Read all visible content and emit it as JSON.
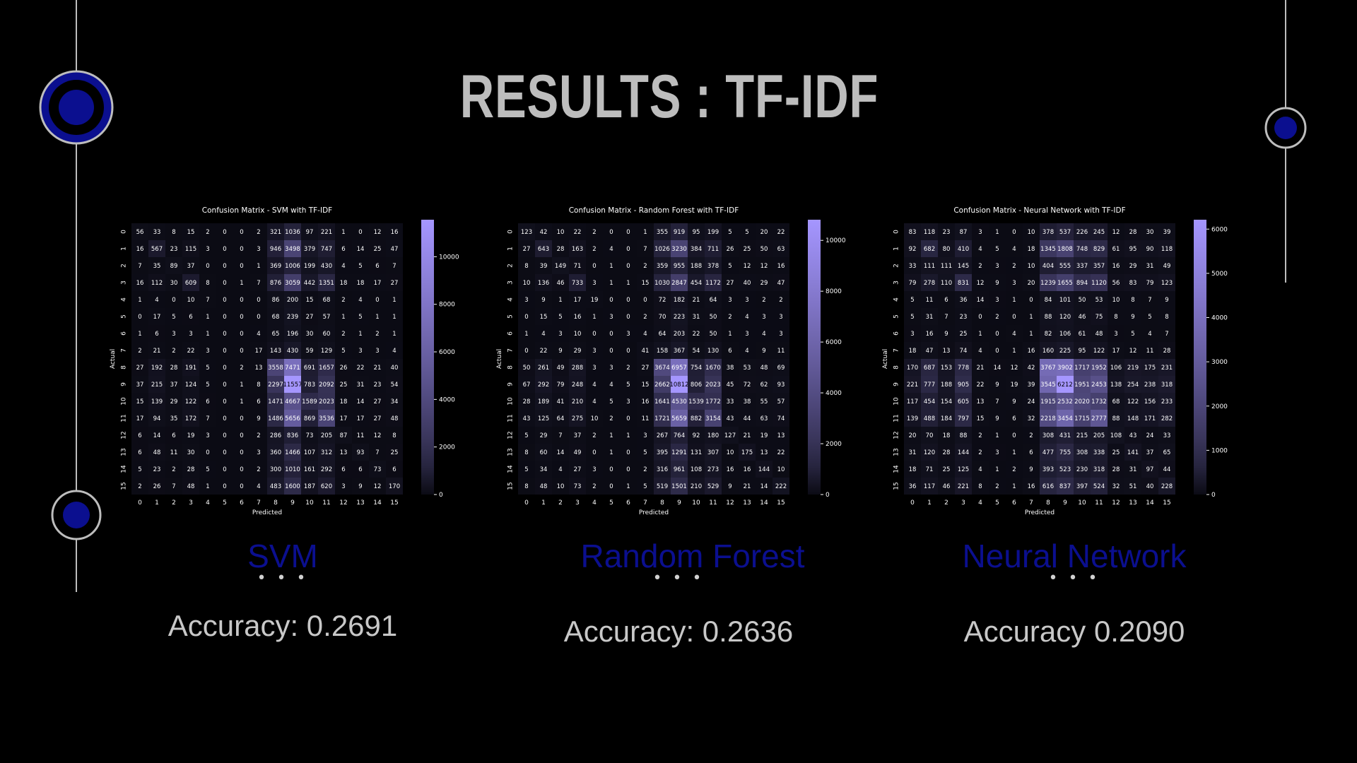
{
  "slide": {
    "title": "RESULTS : TF-IDF",
    "colors": {
      "background": "#000000",
      "accent": "#0b0f8f",
      "cmap_low": "#0b0b14",
      "cmap_high": "#a596ff"
    }
  },
  "panels": [
    {
      "model_label": "SVM",
      "dots": "• • •",
      "accuracy_text": "Accuracy: 0.2691"
    },
    {
      "model_label": "Random Forest",
      "dots": "• • •",
      "accuracy_text": "Accuracy: 0.2636"
    },
    {
      "model_label": "Neural Network",
      "dots": "• • •",
      "accuracy_text": "Accuracy 0.2090"
    }
  ],
  "chart_data": [
    {
      "type": "heatmap",
      "title": "Confusion Matrix - SVM with TF-IDF",
      "xlabel": "Predicted",
      "ylabel": "Actual",
      "categories": [
        "0",
        "1",
        "2",
        "3",
        "4",
        "5",
        "6",
        "7",
        "8",
        "9",
        "10",
        "11",
        "12",
        "13",
        "14",
        "15"
      ],
      "colorbar_ticks": [
        0,
        2000,
        4000,
        6000,
        8000,
        10000
      ],
      "vmax": 11557,
      "matrix": [
        [
          56,
          33,
          8,
          15,
          2,
          0,
          0,
          2,
          321,
          1036,
          97,
          221,
          1,
          0,
          12,
          16
        ],
        [
          16,
          567,
          23,
          115,
          3,
          0,
          0,
          3,
          946,
          3498,
          379,
          747,
          6,
          14,
          25,
          47
        ],
        [
          7,
          35,
          89,
          37,
          0,
          0,
          0,
          1,
          369,
          1006,
          199,
          430,
          4,
          5,
          6,
          7
        ],
        [
          16,
          112,
          30,
          609,
          8,
          0,
          1,
          7,
          876,
          3059,
          442,
          1351,
          18,
          18,
          17,
          27
        ],
        [
          1,
          4,
          0,
          10,
          7,
          0,
          0,
          0,
          86,
          200,
          15,
          68,
          2,
          4,
          0,
          1
        ],
        [
          0,
          17,
          5,
          6,
          1,
          0,
          0,
          0,
          68,
          239,
          27,
          57,
          1,
          5,
          1,
          1
        ],
        [
          1,
          6,
          3,
          3,
          1,
          0,
          0,
          4,
          65,
          196,
          30,
          60,
          2,
          1,
          2,
          1
        ],
        [
          2,
          21,
          2,
          22,
          3,
          0,
          0,
          17,
          143,
          430,
          59,
          129,
          5,
          3,
          3,
          4
        ],
        [
          27,
          192,
          28,
          191,
          5,
          0,
          2,
          13,
          3558,
          7471,
          691,
          1657,
          26,
          22,
          21,
          40
        ],
        [
          37,
          215,
          37,
          124,
          5,
          0,
          1,
          8,
          2297,
          11557,
          783,
          2092,
          25,
          31,
          23,
          54
        ],
        [
          15,
          139,
          29,
          122,
          6,
          0,
          1,
          6,
          1471,
          4667,
          1589,
          2023,
          18,
          14,
          27,
          34
        ],
        [
          17,
          94,
          35,
          172,
          7,
          0,
          0,
          9,
          1486,
          5656,
          869,
          3536,
          17,
          17,
          27,
          48
        ],
        [
          6,
          14,
          6,
          19,
          3,
          0,
          0,
          2,
          286,
          836,
          73,
          205,
          87,
          11,
          12,
          8
        ],
        [
          6,
          48,
          11,
          30,
          0,
          0,
          0,
          3,
          360,
          1466,
          107,
          312,
          13,
          93,
          7,
          25
        ],
        [
          5,
          23,
          2,
          28,
          5,
          0,
          0,
          2,
          300,
          1010,
          161,
          292,
          6,
          6,
          73,
          6
        ],
        [
          2,
          26,
          7,
          48,
          1,
          0,
          0,
          4,
          483,
          1600,
          187,
          620,
          3,
          9,
          12,
          170
        ]
      ]
    },
    {
      "type": "heatmap",
      "title": "Confusion Matrix - Random Forest with TF-IDF",
      "xlabel": "Predicted",
      "ylabel": "Actual",
      "categories": [
        "0",
        "1",
        "2",
        "3",
        "4",
        "5",
        "6",
        "7",
        "8",
        "9",
        "10",
        "11",
        "12",
        "13",
        "14",
        "15"
      ],
      "colorbar_ticks": [
        0,
        2000,
        4000,
        6000,
        8000,
        10000
      ],
      "vmax": 10812,
      "matrix": [
        [
          123,
          42,
          10,
          22,
          2,
          0,
          0,
          1,
          355,
          919,
          95,
          199,
          5,
          5,
          20,
          22
        ],
        [
          27,
          643,
          28,
          163,
          2,
          4,
          0,
          7,
          1026,
          3230,
          384,
          711,
          26,
          25,
          50,
          63
        ],
        [
          8,
          39,
          149,
          71,
          0,
          1,
          0,
          2,
          359,
          955,
          188,
          378,
          5,
          12,
          12,
          16
        ],
        [
          10,
          136,
          46,
          733,
          3,
          1,
          1,
          15,
          1030,
          2847,
          454,
          1172,
          27,
          40,
          29,
          47
        ],
        [
          3,
          9,
          1,
          17,
          19,
          0,
          0,
          0,
          72,
          182,
          21,
          64,
          3,
          3,
          2,
          2
        ],
        [
          0,
          15,
          5,
          16,
          1,
          3,
          0,
          2,
          70,
          223,
          31,
          50,
          2,
          4,
          3,
          3
        ],
        [
          1,
          4,
          3,
          10,
          0,
          0,
          3,
          4,
          64,
          203,
          22,
          50,
          1,
          3,
          4,
          3
        ],
        [
          0,
          22,
          9,
          29,
          3,
          0,
          0,
          41,
          158,
          367,
          54,
          130,
          6,
          4,
          9,
          11
        ],
        [
          50,
          261,
          49,
          288,
          3,
          3,
          2,
          27,
          3674,
          6957,
          754,
          1670,
          38,
          53,
          48,
          69
        ],
        [
          67,
          292,
          79,
          248,
          4,
          4,
          5,
          15,
          2662,
          10812,
          806,
          2023,
          45,
          72,
          62,
          93
        ],
        [
          28,
          189,
          41,
          210,
          4,
          5,
          3,
          16,
          1641,
          4530,
          1539,
          1772,
          33,
          38,
          55,
          57
        ],
        [
          43,
          125,
          64,
          275,
          10,
          2,
          0,
          11,
          1721,
          5659,
          882,
          3154,
          43,
          44,
          63,
          74
        ],
        [
          5,
          29,
          7,
          37,
          2,
          1,
          1,
          3,
          267,
          764,
          92,
          180,
          127,
          21,
          19,
          13
        ],
        [
          8,
          60,
          14,
          49,
          0,
          1,
          0,
          5,
          395,
          1291,
          131,
          307,
          10,
          175,
          13,
          22
        ],
        [
          5,
          34,
          4,
          27,
          3,
          0,
          0,
          2,
          316,
          961,
          108,
          273,
          16,
          16,
          144,
          10
        ],
        [
          8,
          48,
          10,
          73,
          2,
          0,
          1,
          5,
          519,
          1501,
          210,
          529,
          9,
          21,
          14,
          222
        ]
      ]
    },
    {
      "type": "heatmap",
      "title": "Confusion Matrix - Neural Network with TF-IDF",
      "xlabel": "Predicted",
      "ylabel": "Actual",
      "categories": [
        "0",
        "1",
        "2",
        "3",
        "4",
        "5",
        "6",
        "7",
        "8",
        "9",
        "10",
        "11",
        "12",
        "13",
        "14",
        "15"
      ],
      "colorbar_ticks": [
        0,
        1000,
        2000,
        3000,
        4000,
        5000,
        6000
      ],
      "vmax": 6212,
      "matrix": [
        [
          83,
          118,
          23,
          87,
          3,
          1,
          0,
          10,
          378,
          537,
          226,
          245,
          12,
          28,
          30,
          39
        ],
        [
          92,
          682,
          80,
          410,
          4,
          5,
          4,
          18,
          1345,
          1808,
          748,
          829,
          61,
          95,
          90,
          118
        ],
        [
          33,
          111,
          111,
          145,
          2,
          3,
          2,
          10,
          404,
          555,
          337,
          357,
          16,
          29,
          31,
          49
        ],
        [
          79,
          278,
          110,
          831,
          12,
          9,
          3,
          20,
          1239,
          1655,
          894,
          1120,
          56,
          83,
          79,
          123
        ],
        [
          5,
          11,
          6,
          36,
          14,
          3,
          1,
          0,
          84,
          101,
          50,
          53,
          10,
          8,
          7,
          9
        ],
        [
          5,
          31,
          7,
          23,
          0,
          2,
          0,
          1,
          88,
          120,
          46,
          75,
          8,
          9,
          5,
          8
        ],
        [
          3,
          16,
          9,
          25,
          1,
          0,
          4,
          1,
          82,
          106,
          61,
          48,
          3,
          5,
          4,
          7
        ],
        [
          18,
          47,
          13,
          74,
          4,
          0,
          1,
          16,
          160,
          225,
          95,
          122,
          17,
          12,
          11,
          28
        ],
        [
          170,
          687,
          153,
          778,
          21,
          14,
          12,
          42,
          3767,
          3902,
          1717,
          1952,
          106,
          219,
          175,
          231
        ],
        [
          221,
          777,
          188,
          905,
          22,
          9,
          19,
          39,
          3545,
          6212,
          1951,
          2453,
          138,
          254,
          238,
          318
        ],
        [
          117,
          454,
          154,
          605,
          13,
          7,
          9,
          24,
          1915,
          2532,
          2020,
          1732,
          68,
          122,
          156,
          233
        ],
        [
          139,
          488,
          184,
          797,
          15,
          9,
          6,
          32,
          2218,
          3454,
          1715,
          2777,
          88,
          148,
          171,
          282
        ],
        [
          20,
          70,
          18,
          88,
          2,
          1,
          0,
          2,
          308,
          431,
          215,
          205,
          108,
          43,
          24,
          33
        ],
        [
          31,
          120,
          28,
          144,
          2,
          3,
          1,
          6,
          477,
          755,
          308,
          338,
          25,
          141,
          37,
          65
        ],
        [
          18,
          71,
          25,
          125,
          4,
          1,
          2,
          9,
          393,
          523,
          230,
          318,
          28,
          31,
          97,
          44
        ],
        [
          36,
          117,
          46,
          221,
          8,
          2,
          1,
          16,
          616,
          837,
          397,
          524,
          32,
          51,
          40,
          228
        ]
      ]
    }
  ]
}
